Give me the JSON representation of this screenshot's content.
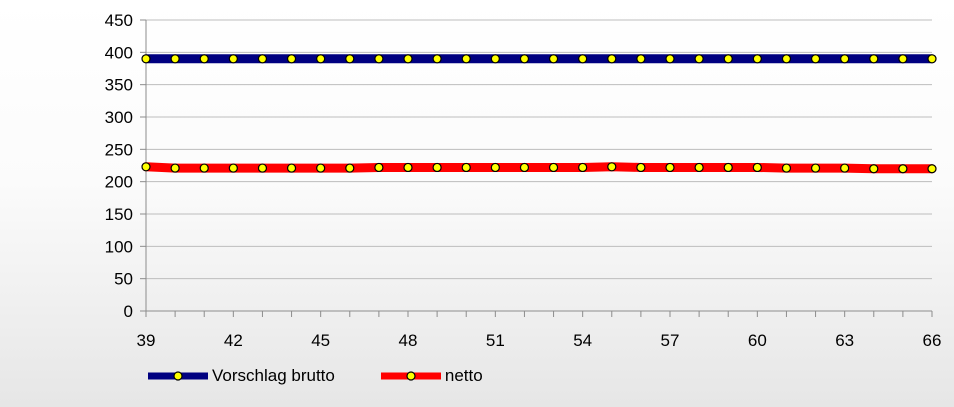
{
  "chart_data": {
    "type": "line",
    "title": "",
    "xlabel": "",
    "ylabel": "",
    "x": [
      39,
      40,
      41,
      42,
      43,
      44,
      45,
      46,
      47,
      48,
      49,
      50,
      51,
      52,
      53,
      54,
      55,
      56,
      57,
      58,
      59,
      60,
      61,
      62,
      63,
      64,
      65,
      66
    ],
    "xlim": [
      39,
      66
    ],
    "x_ticks": [
      "39",
      "42",
      "45",
      "48",
      "51",
      "54",
      "57",
      "60",
      "63",
      "66"
    ],
    "ylim": [
      0,
      450
    ],
    "y_ticks": [
      "0",
      "50",
      "100",
      "150",
      "200",
      "250",
      "300",
      "350",
      "400",
      "450"
    ],
    "grid": "horizontal",
    "legend_position": "bottom",
    "series": [
      {
        "name": "Vorschlag brutto",
        "color": "#000080",
        "marker_color": "#ffff00",
        "values": [
          390,
          390,
          390,
          390,
          390,
          390,
          390,
          390,
          390,
          390,
          390,
          390,
          390,
          390,
          390,
          390,
          390,
          390,
          390,
          390,
          390,
          390,
          390,
          390,
          390,
          390,
          390,
          390
        ]
      },
      {
        "name": "netto",
        "color": "#ff0000",
        "marker_color": "#ffff00",
        "values": [
          223,
          221,
          221,
          221,
          221,
          221,
          221,
          221,
          222,
          222,
          222,
          222,
          222,
          222,
          222,
          222,
          223,
          222,
          222,
          222,
          222,
          222,
          221,
          221,
          221,
          220,
          220,
          220
        ]
      }
    ]
  }
}
